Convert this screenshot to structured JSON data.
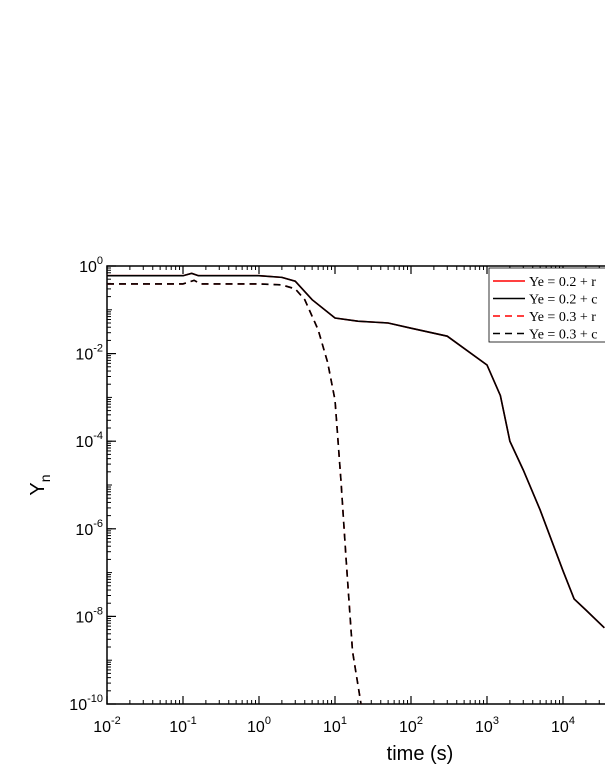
{
  "chart_data": {
    "type": "line",
    "x_label": "time (s)",
    "y_label": "Y",
    "y_label_sub": "n",
    "xscale": "log",
    "yscale": "log",
    "xlim": [
      0.01,
      100000
    ],
    "ylim": [
      1e-10,
      1
    ],
    "xticks": [
      {
        "value": 0.01,
        "label": "10",
        "exponent": "-2"
      },
      {
        "value": 0.1,
        "label": "10",
        "exponent": "-1"
      },
      {
        "value": 1,
        "label": "10",
        "exponent": "0"
      },
      {
        "value": 10,
        "label": "10",
        "exponent": "1"
      },
      {
        "value": 100,
        "label": "10",
        "exponent": "2"
      },
      {
        "value": 1000,
        "label": "10",
        "exponent": "3"
      },
      {
        "value": 10000,
        "label": "10",
        "exponent": "4"
      }
    ],
    "yticks": [
      {
        "value": 1,
        "label": "10",
        "exponent": "0"
      },
      {
        "value": 0.01,
        "label": "10",
        "exponent": "-2"
      },
      {
        "value": 0.0001,
        "label": "10",
        "exponent": "-4"
      },
      {
        "value": 1e-06,
        "label": "10",
        "exponent": "-6"
      },
      {
        "value": 1e-08,
        "label": "10",
        "exponent": "-8"
      },
      {
        "value": 1e-10,
        "label": "10",
        "exponent": "-10"
      }
    ],
    "legend": "upper right",
    "series": [
      {
        "name": "Ye = 0.2 + r",
        "color": "#ff0000",
        "dash": false,
        "x": [
          0.01,
          0.1,
          0.13,
          0.16,
          1,
          2,
          3,
          5,
          10,
          20,
          50,
          100,
          300,
          1000,
          1500,
          2000,
          3000,
          5000,
          10000,
          14000,
          20000,
          35000
        ],
        "values": [
          0.6,
          0.6,
          0.68,
          0.6,
          0.6,
          0.55,
          0.45,
          0.17,
          0.065,
          0.055,
          0.05,
          0.038,
          0.025,
          0.0055,
          0.0011,
          0.0001,
          2.2e-05,
          2.7e-06,
          1.1e-07,
          2.5e-08,
          1.4e-08,
          5.5e-09
        ]
      },
      {
        "name": "Ye = 0.2 + c",
        "color": "#000000",
        "dash": false,
        "x": [
          0.01,
          0.1,
          0.13,
          0.16,
          1,
          2,
          3,
          5,
          10,
          20,
          50,
          100,
          300,
          1000,
          1500,
          2000,
          3000,
          5000,
          10000,
          14000,
          20000,
          35000
        ],
        "values": [
          0.6,
          0.6,
          0.68,
          0.6,
          0.6,
          0.55,
          0.45,
          0.17,
          0.065,
          0.055,
          0.05,
          0.038,
          0.025,
          0.0055,
          0.0011,
          0.0001,
          2.2e-05,
          2.7e-06,
          1.1e-07,
          2.5e-08,
          1.4e-08,
          5.5e-09
        ]
      },
      {
        "name": "Ye = 0.3 + r",
        "color": "#ff0000",
        "dash": true,
        "x": [
          0.01,
          0.1,
          0.14,
          0.17,
          1,
          2,
          3,
          4,
          6,
          8,
          10,
          12,
          14,
          17,
          22
        ],
        "values": [
          0.39,
          0.39,
          0.47,
          0.39,
          0.39,
          0.37,
          0.3,
          0.17,
          0.035,
          0.0063,
          0.00087,
          1.2e-05,
          2e-07,
          1.6e-09,
          1e-10
        ]
      },
      {
        "name": "Ye = 0.3 + c",
        "color": "#000000",
        "dash": true,
        "x": [
          0.01,
          0.1,
          0.14,
          0.17,
          1,
          2,
          3,
          4,
          6,
          8,
          10,
          12,
          14,
          17,
          22
        ],
        "values": [
          0.39,
          0.39,
          0.47,
          0.39,
          0.39,
          0.37,
          0.3,
          0.17,
          0.035,
          0.0063,
          0.00087,
          1.2e-05,
          2e-07,
          1.6e-09,
          1e-10
        ]
      }
    ]
  }
}
